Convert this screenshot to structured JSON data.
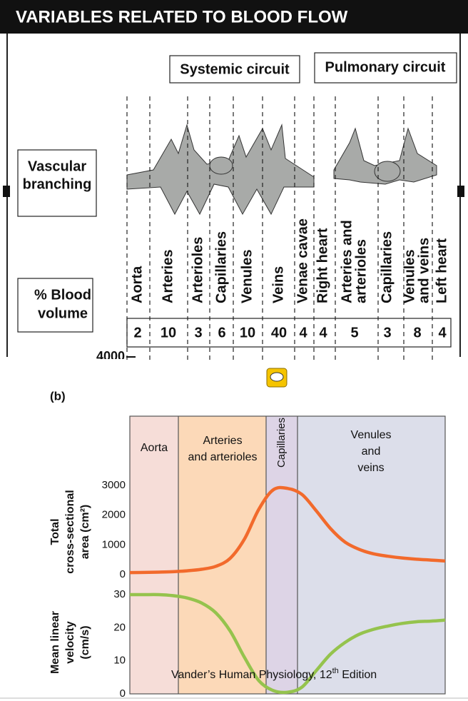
{
  "header": {
    "title": "VARIABLES RELATED TO BLOOD FLOW"
  },
  "circuits": [
    "Systemic circuit",
    "Pulmonary circuit"
  ],
  "row_labels": {
    "branching": [
      "Vascular",
      "branching"
    ],
    "volume": [
      "% Blood",
      "volume"
    ]
  },
  "segments": [
    {
      "label": [
        "Aorta"
      ],
      "volume": 2
    },
    {
      "label": [
        "Arteries"
      ],
      "volume": 10
    },
    {
      "label": [
        "Arterioles"
      ],
      "volume": 3
    },
    {
      "label": [
        "Capillaries"
      ],
      "volume": 6
    },
    {
      "label": [
        "Venules"
      ],
      "volume": 10
    },
    {
      "label": [
        "Veins"
      ],
      "volume": 40
    },
    {
      "label": [
        "Venae cavae"
      ],
      "volume": 4
    },
    {
      "label": [
        "Right heart"
      ],
      "volume": 4
    },
    {
      "label": [
        "Arteries and",
        "arterioles"
      ],
      "volume": 5
    },
    {
      "label": [
        "Capillaries"
      ],
      "volume": 3
    },
    {
      "label": [
        "Venules",
        "and veins"
      ],
      "volume": 8
    },
    {
      "label": [
        "Left heart"
      ],
      "volume": 4
    }
  ],
  "axis_stub": "4000",
  "panel_label": "(b)",
  "credit": {
    "text": "Vander’s Human Physiology, 12",
    "sup": "th",
    "tail": " Edition"
  },
  "chart_data": [
    {
      "type": "line",
      "ylabel": [
        "Total",
        "cross-sectional",
        "area (cm²)"
      ],
      "regions": [
        {
          "name": [
            "Aorta"
          ],
          "color": "#f6ddd8"
        },
        {
          "name": [
            "Arteries",
            "and arterioles"
          ],
          "color": "#fcd9b8"
        },
        {
          "name": [
            "Capillaries"
          ],
          "color": "#ddd4e6"
        },
        {
          "name": [
            "Venules",
            "and",
            "veins"
          ],
          "color": "#dcdeea"
        }
      ],
      "categories": [
        null,
        null,
        null,
        null,
        null,
        null,
        null,
        null,
        null,
        null,
        null,
        null,
        null,
        null,
        null,
        null,
        null,
        null,
        null,
        null,
        null,
        null,
        null
      ],
      "series": [
        {
          "color": "#f26a2c",
          "values": [
            70,
            75,
            85,
            100,
            130,
            180,
            280,
            550,
            1200,
            2200,
            2850,
            2900,
            2700,
            2150,
            1550,
            1100,
            850,
            700,
            620,
            560,
            520,
            490,
            460
          ]
        }
      ],
      "ylim": [
        0,
        3000
      ],
      "yticks": [
        0,
        1000,
        2000,
        3000
      ]
    },
    {
      "type": "line",
      "ylabel": [
        "Mean linear",
        "velocity",
        "(cm/s)"
      ],
      "categories": [
        null,
        null,
        null,
        null,
        null,
        null,
        null,
        null,
        null,
        null,
        null,
        null,
        null,
        null,
        null,
        null,
        null,
        null,
        null,
        null,
        null,
        null,
        null
      ],
      "series": [
        {
          "color": "#95c34d",
          "values": [
            30,
            30,
            30,
            29.7,
            29,
            27.5,
            24.5,
            19,
            11,
            4,
            1,
            0.5,
            2,
            7,
            12,
            15.5,
            18,
            19.5,
            20.5,
            21.3,
            21.8,
            22,
            22.3
          ]
        }
      ],
      "ylim": [
        0,
        30
      ],
      "yticks": [
        0,
        10,
        20,
        30
      ]
    }
  ]
}
